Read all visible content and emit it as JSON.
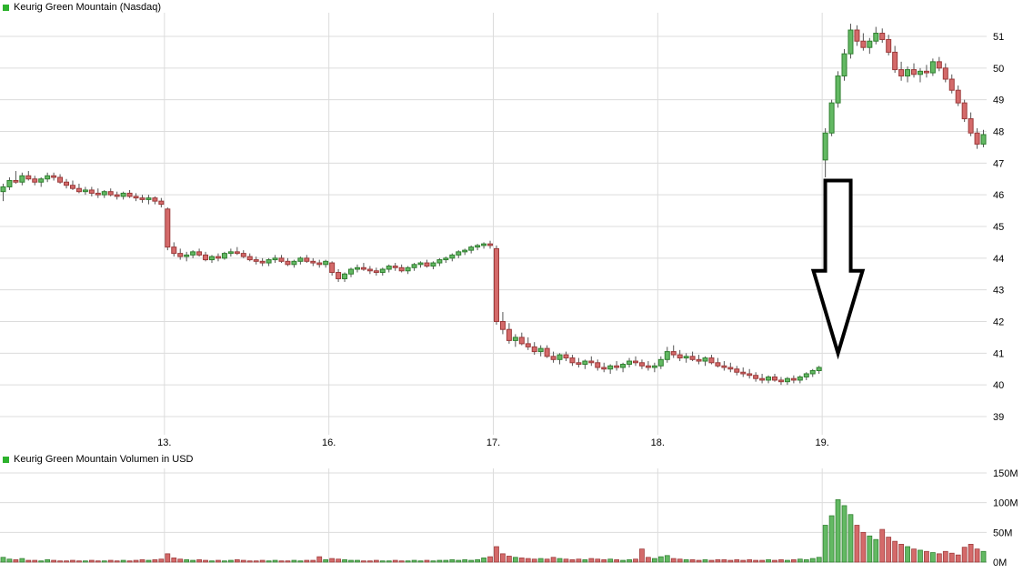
{
  "titles": {
    "price": "Keurig Green Mountain (Nasdaq)",
    "volume": "Keurig Green Mountain Volumen in USD"
  },
  "colors": {
    "up_fill": "#63b963",
    "up_stroke": "#2f7f2f",
    "down_fill": "#d46a6a",
    "down_stroke": "#9c3a3a",
    "wick": "#555555",
    "grid": "#dcdcdc",
    "axis_line": "#aaaaaa",
    "text": "#000000",
    "legend_green": "#2db22d",
    "arrow_fill": "#ffffff",
    "arrow_stroke": "#000000",
    "background": "#ffffff"
  },
  "chart_data": {
    "type": "candlestick_with_volume",
    "title": "Keurig Green Mountain (Nasdaq)",
    "volume_title": "Keurig Green Mountain Volumen in USD",
    "x_axis_note": "intraday 15-minute candles across trading days of the month",
    "x_ticks": [
      {
        "label": "13.",
        "index": 26
      },
      {
        "label": "16.",
        "index": 52
      },
      {
        "label": "17.",
        "index": 78
      },
      {
        "label": "18.",
        "index": 104
      },
      {
        "label": "19.",
        "index": 130
      }
    ],
    "price_axis": {
      "min": 39,
      "max": 51,
      "ticks": [
        39,
        40,
        41,
        42,
        43,
        44,
        45,
        46,
        47,
        48,
        49,
        50,
        51
      ]
    },
    "volume_axis": {
      "max": 150,
      "ticks": [
        {
          "value": 0,
          "label": "0M"
        },
        {
          "value": 50,
          "label": "50M"
        },
        {
          "value": 100,
          "label": "100M"
        },
        {
          "value": 150,
          "label": "150M"
        }
      ]
    },
    "annotation": {
      "shape": "down_arrow",
      "description": "large black outlined arrow pointing down before the day-19 gap up",
      "at_index": 132,
      "top_price": 46.45,
      "head_price": 43.6,
      "tip_price": 41.0
    },
    "candles": [
      [
        46.1,
        46.35,
        45.8,
        46.25
      ],
      [
        46.25,
        46.55,
        46.15,
        46.45
      ],
      [
        46.45,
        46.75,
        46.35,
        46.4
      ],
      [
        46.4,
        46.7,
        46.3,
        46.6
      ],
      [
        46.6,
        46.75,
        46.45,
        46.5
      ],
      [
        46.5,
        46.6,
        46.3,
        46.4
      ],
      [
        46.4,
        46.55,
        46.25,
        46.5
      ],
      [
        46.5,
        46.7,
        46.4,
        46.6
      ],
      [
        46.6,
        46.7,
        46.45,
        46.55
      ],
      [
        46.55,
        46.65,
        46.35,
        46.4
      ],
      [
        46.4,
        46.5,
        46.2,
        46.3
      ],
      [
        46.3,
        46.45,
        46.15,
        46.2
      ],
      [
        46.2,
        46.35,
        46.05,
        46.1
      ],
      [
        46.1,
        46.25,
        46.0,
        46.15
      ],
      [
        46.15,
        46.25,
        45.95,
        46.05
      ],
      [
        46.05,
        46.2,
        45.9,
        46.0
      ],
      [
        46.0,
        46.15,
        45.9,
        46.1
      ],
      [
        46.1,
        46.2,
        45.95,
        46.0
      ],
      [
        46.0,
        46.1,
        45.85,
        45.95
      ],
      [
        45.95,
        46.1,
        45.85,
        46.05
      ],
      [
        46.05,
        46.15,
        45.9,
        45.95
      ],
      [
        45.95,
        46.05,
        45.8,
        45.9
      ],
      [
        45.9,
        46.0,
        45.75,
        45.85
      ],
      [
        45.85,
        46.0,
        45.7,
        45.9
      ],
      [
        45.9,
        45.95,
        45.7,
        45.8
      ],
      [
        45.8,
        45.9,
        45.6,
        45.7
      ],
      [
        45.55,
        45.6,
        44.25,
        44.35
      ],
      [
        44.35,
        44.5,
        44.05,
        44.15
      ],
      [
        44.15,
        44.3,
        43.95,
        44.05
      ],
      [
        44.05,
        44.2,
        43.9,
        44.1
      ],
      [
        44.1,
        44.25,
        44.0,
        44.2
      ],
      [
        44.2,
        44.3,
        44.05,
        44.1
      ],
      [
        44.1,
        44.2,
        43.9,
        43.95
      ],
      [
        43.95,
        44.1,
        43.85,
        44.05
      ],
      [
        44.05,
        44.15,
        43.9,
        44.0
      ],
      [
        44.0,
        44.2,
        43.95,
        44.15
      ],
      [
        44.15,
        44.3,
        44.05,
        44.2
      ],
      [
        44.2,
        44.35,
        44.1,
        44.15
      ],
      [
        44.15,
        44.25,
        44.0,
        44.05
      ],
      [
        44.05,
        44.15,
        43.9,
        43.95
      ],
      [
        43.95,
        44.05,
        43.8,
        43.9
      ],
      [
        43.9,
        44.0,
        43.75,
        43.85
      ],
      [
        43.85,
        44.0,
        43.75,
        43.95
      ],
      [
        43.95,
        44.1,
        43.85,
        44.0
      ],
      [
        44.0,
        44.1,
        43.85,
        43.9
      ],
      [
        43.9,
        44.0,
        43.75,
        43.8
      ],
      [
        43.8,
        43.95,
        43.7,
        43.9
      ],
      [
        43.9,
        44.05,
        43.8,
        44.0
      ],
      [
        44.0,
        44.1,
        43.85,
        43.9
      ],
      [
        43.9,
        44.0,
        43.75,
        43.85
      ],
      [
        43.85,
        43.95,
        43.7,
        43.8
      ],
      [
        43.8,
        43.95,
        43.7,
        43.9
      ],
      [
        43.85,
        43.9,
        43.45,
        43.55
      ],
      [
        43.55,
        43.65,
        43.25,
        43.35
      ],
      [
        43.35,
        43.55,
        43.25,
        43.5
      ],
      [
        43.5,
        43.7,
        43.4,
        43.65
      ],
      [
        43.65,
        43.8,
        43.55,
        43.7
      ],
      [
        43.7,
        43.85,
        43.6,
        43.65
      ],
      [
        43.65,
        43.75,
        43.5,
        43.6
      ],
      [
        43.6,
        43.7,
        43.45,
        43.55
      ],
      [
        43.55,
        43.7,
        43.45,
        43.65
      ],
      [
        43.65,
        43.8,
        43.55,
        43.75
      ],
      [
        43.75,
        43.85,
        43.6,
        43.7
      ],
      [
        43.7,
        43.8,
        43.55,
        43.6
      ],
      [
        43.6,
        43.75,
        43.5,
        43.7
      ],
      [
        43.7,
        43.85,
        43.6,
        43.8
      ],
      [
        43.8,
        43.9,
        43.7,
        43.85
      ],
      [
        43.85,
        43.95,
        43.7,
        43.75
      ],
      [
        43.75,
        43.9,
        43.65,
        43.85
      ],
      [
        43.85,
        44.0,
        43.75,
        43.95
      ],
      [
        43.95,
        44.05,
        43.85,
        44.0
      ],
      [
        44.0,
        44.15,
        43.9,
        44.1
      ],
      [
        44.1,
        44.25,
        44.0,
        44.2
      ],
      [
        44.2,
        44.3,
        44.1,
        44.25
      ],
      [
        44.25,
        44.4,
        44.15,
        44.35
      ],
      [
        44.35,
        44.45,
        44.25,
        44.4
      ],
      [
        44.4,
        44.5,
        44.3,
        44.45
      ],
      [
        44.45,
        44.55,
        44.3,
        44.4
      ],
      [
        44.3,
        44.4,
        41.9,
        42.0
      ],
      [
        42.0,
        42.3,
        41.6,
        41.75
      ],
      [
        41.75,
        41.95,
        41.3,
        41.4
      ],
      [
        41.4,
        41.6,
        41.2,
        41.5
      ],
      [
        41.5,
        41.65,
        41.25,
        41.3
      ],
      [
        41.3,
        41.5,
        41.1,
        41.2
      ],
      [
        41.2,
        41.35,
        40.95,
        41.05
      ],
      [
        41.05,
        41.25,
        40.9,
        41.15
      ],
      [
        41.15,
        41.25,
        40.85,
        40.9
      ],
      [
        40.9,
        41.05,
        40.7,
        40.8
      ],
      [
        40.8,
        41.0,
        40.65,
        40.95
      ],
      [
        40.95,
        41.05,
        40.75,
        40.85
      ],
      [
        40.85,
        40.95,
        40.6,
        40.7
      ],
      [
        40.7,
        40.85,
        40.55,
        40.65
      ],
      [
        40.65,
        40.8,
        40.5,
        40.75
      ],
      [
        40.75,
        40.9,
        40.6,
        40.7
      ],
      [
        40.7,
        40.8,
        40.45,
        40.55
      ],
      [
        40.55,
        40.7,
        40.4,
        40.5
      ],
      [
        40.5,
        40.65,
        40.35,
        40.6
      ],
      [
        40.6,
        40.75,
        40.45,
        40.55
      ],
      [
        40.55,
        40.7,
        40.4,
        40.65
      ],
      [
        40.65,
        40.85,
        40.55,
        40.75
      ],
      [
        40.75,
        40.9,
        40.6,
        40.7
      ],
      [
        40.7,
        40.8,
        40.5,
        40.6
      ],
      [
        40.6,
        40.75,
        40.45,
        40.55
      ],
      [
        40.55,
        40.7,
        40.4,
        40.6
      ],
      [
        40.6,
        40.9,
        40.5,
        40.8
      ],
      [
        40.8,
        41.2,
        40.7,
        41.05
      ],
      [
        41.05,
        41.25,
        40.85,
        40.95
      ],
      [
        40.95,
        41.1,
        40.75,
        40.85
      ],
      [
        40.85,
        41.0,
        40.7,
        40.9
      ],
      [
        40.9,
        41.05,
        40.75,
        40.8
      ],
      [
        40.8,
        40.95,
        40.65,
        40.75
      ],
      [
        40.75,
        40.9,
        40.6,
        40.85
      ],
      [
        40.85,
        40.95,
        40.65,
        40.7
      ],
      [
        40.7,
        40.85,
        40.55,
        40.6
      ],
      [
        40.6,
        40.75,
        40.45,
        40.55
      ],
      [
        40.55,
        40.7,
        40.4,
        40.5
      ],
      [
        40.5,
        40.6,
        40.3,
        40.4
      ],
      [
        40.4,
        40.55,
        40.25,
        40.35
      ],
      [
        40.35,
        40.5,
        40.2,
        40.3
      ],
      [
        40.3,
        40.4,
        40.1,
        40.2
      ],
      [
        40.2,
        40.35,
        40.05,
        40.15
      ],
      [
        40.15,
        40.3,
        40.05,
        40.25
      ],
      [
        40.25,
        40.35,
        40.1,
        40.15
      ],
      [
        40.15,
        40.25,
        40.0,
        40.1
      ],
      [
        40.1,
        40.25,
        40.0,
        40.2
      ],
      [
        40.2,
        40.3,
        40.05,
        40.15
      ],
      [
        40.15,
        40.3,
        40.05,
        40.25
      ],
      [
        40.25,
        40.4,
        40.15,
        40.35
      ],
      [
        40.35,
        40.5,
        40.25,
        40.45
      ],
      [
        40.45,
        40.6,
        40.35,
        40.55
      ],
      [
        47.1,
        48.1,
        46.55,
        47.95
      ],
      [
        47.95,
        49.0,
        47.85,
        48.9
      ],
      [
        48.9,
        49.9,
        48.75,
        49.75
      ],
      [
        49.75,
        50.6,
        49.6,
        50.45
      ],
      [
        50.45,
        51.4,
        50.3,
        51.2
      ],
      [
        51.2,
        51.35,
        50.7,
        50.85
      ],
      [
        50.85,
        51.1,
        50.55,
        50.65
      ],
      [
        50.65,
        50.95,
        50.45,
        50.85
      ],
      [
        50.85,
        51.3,
        50.75,
        51.1
      ],
      [
        51.1,
        51.25,
        50.8,
        50.9
      ],
      [
        50.9,
        51.05,
        50.4,
        50.5
      ],
      [
        50.5,
        50.7,
        49.85,
        49.95
      ],
      [
        49.95,
        50.2,
        49.6,
        49.75
      ],
      [
        49.75,
        50.05,
        49.55,
        49.95
      ],
      [
        49.95,
        50.15,
        49.7,
        49.8
      ],
      [
        49.8,
        50.0,
        49.55,
        49.9
      ],
      [
        49.9,
        50.1,
        49.7,
        49.85
      ],
      [
        49.85,
        50.3,
        49.75,
        50.2
      ],
      [
        50.2,
        50.35,
        49.9,
        50.0
      ],
      [
        50.0,
        50.15,
        49.55,
        49.65
      ],
      [
        49.65,
        49.8,
        49.2,
        49.3
      ],
      [
        49.3,
        49.45,
        48.8,
        48.9
      ],
      [
        48.9,
        49.0,
        48.3,
        48.4
      ],
      [
        48.4,
        48.6,
        47.85,
        47.95
      ],
      [
        47.95,
        48.1,
        47.45,
        47.6
      ],
      [
        47.6,
        48.05,
        47.5,
        47.9
      ]
    ],
    "volumes": [
      8,
      5,
      4,
      6,
      3,
      3,
      2,
      4,
      3,
      2,
      2,
      3,
      2,
      2,
      3,
      2,
      2,
      3,
      2,
      3,
      2,
      3,
      4,
      3,
      4,
      5,
      14,
      7,
      5,
      4,
      3,
      4,
      3,
      2,
      3,
      2,
      3,
      4,
      3,
      2,
      2,
      3,
      2,
      3,
      2,
      2,
      3,
      2,
      3,
      3,
      9,
      4,
      6,
      5,
      4,
      3,
      3,
      2,
      2,
      3,
      2,
      2,
      3,
      2,
      2,
      3,
      2,
      3,
      2,
      3,
      3,
      4,
      3,
      4,
      3,
      4,
      7,
      9,
      26,
      14,
      10,
      8,
      7,
      6,
      5,
      6,
      5,
      8,
      6,
      5,
      4,
      5,
      4,
      6,
      5,
      4,
      5,
      4,
      3,
      4,
      5,
      22,
      8,
      6,
      9,
      11,
      6,
      5,
      4,
      4,
      3,
      4,
      3,
      4,
      4,
      3,
      4,
      3,
      4,
      3,
      3,
      4,
      3,
      4,
      3,
      4,
      5,
      4,
      6,
      8,
      62,
      78,
      105,
      95,
      80,
      62,
      50,
      44,
      38,
      55,
      42,
      35,
      30,
      26,
      22,
      20,
      18,
      16,
      14,
      18,
      15,
      12,
      25,
      30,
      22,
      18
    ]
  }
}
